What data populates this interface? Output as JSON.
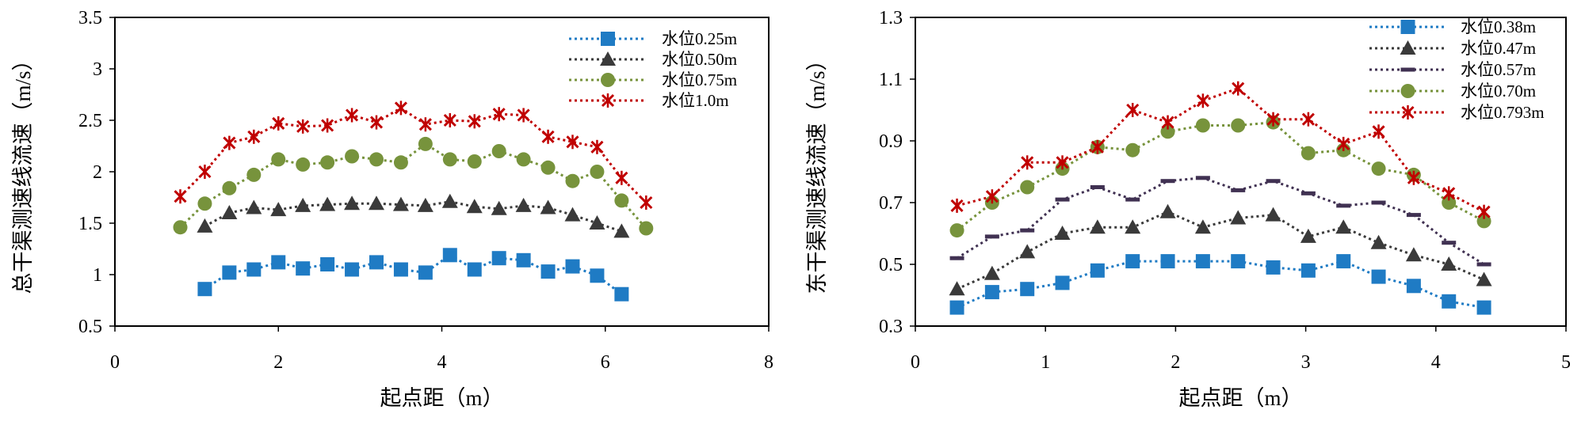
{
  "chart_data": [
    {
      "type": "line",
      "xlabel": "起点距（m）",
      "ylabel": "总干渠测速线流速（m/s）",
      "xlim": [
        0,
        8
      ],
      "ylim": [
        0.5,
        3.5
      ],
      "xticks": [
        0,
        2,
        4,
        6,
        8
      ],
      "yticks": [
        0.5,
        1,
        1.5,
        2,
        2.5,
        3,
        3.5
      ],
      "xtick_labels": [
        "0",
        "2",
        "4",
        "6",
        "8"
      ],
      "ytick_labels": [
        "0.5",
        "1",
        "1.5",
        "2",
        "2.5",
        "3",
        "3.5"
      ],
      "grid": false,
      "legend_position": "top-right",
      "series": [
        {
          "name": "水位0.25m",
          "marker": "square",
          "color": "#1f7bc4",
          "x": [
            1.1,
            1.4,
            1.7,
            2.0,
            2.3,
            2.6,
            2.9,
            3.2,
            3.5,
            3.8,
            4.1,
            4.4,
            4.7,
            5.0,
            5.3,
            5.6,
            5.9,
            6.2
          ],
          "y": [
            0.86,
            1.02,
            1.05,
            1.12,
            1.06,
            1.1,
            1.05,
            1.12,
            1.05,
            1.02,
            1.19,
            1.05,
            1.16,
            1.14,
            1.03,
            1.08,
            0.99,
            0.81
          ]
        },
        {
          "name": "水位0.50m",
          "marker": "triangle",
          "color": "#3a3a3a",
          "x": [
            1.1,
            1.4,
            1.7,
            2.0,
            2.3,
            2.6,
            2.9,
            3.2,
            3.5,
            3.8,
            4.1,
            4.4,
            4.7,
            5.0,
            5.3,
            5.6,
            5.9,
            6.2
          ],
          "y": [
            1.47,
            1.6,
            1.65,
            1.63,
            1.67,
            1.68,
            1.69,
            1.69,
            1.68,
            1.67,
            1.71,
            1.66,
            1.64,
            1.67,
            1.65,
            1.58,
            1.5,
            1.42
          ]
        },
        {
          "name": "水位0.75m",
          "marker": "circle",
          "color": "#77933c",
          "x": [
            0.8,
            1.1,
            1.4,
            1.7,
            2.0,
            2.3,
            2.6,
            2.9,
            3.2,
            3.5,
            3.8,
            4.1,
            4.4,
            4.7,
            5.0,
            5.3,
            5.6,
            5.9,
            6.2,
            6.5
          ],
          "y": [
            1.46,
            1.69,
            1.84,
            1.97,
            2.12,
            2.07,
            2.09,
            2.15,
            2.12,
            2.09,
            2.27,
            2.12,
            2.1,
            2.2,
            2.12,
            2.04,
            1.91,
            2.0,
            1.72,
            1.45
          ]
        },
        {
          "name": "水位1.0m",
          "marker": "star",
          "color": "#c00000",
          "x": [
            0.8,
            1.1,
            1.4,
            1.7,
            2.0,
            2.3,
            2.6,
            2.9,
            3.2,
            3.5,
            3.8,
            4.1,
            4.4,
            4.7,
            5.0,
            5.3,
            5.6,
            5.9,
            6.2,
            6.5
          ],
          "y": [
            1.76,
            2.0,
            2.28,
            2.34,
            2.47,
            2.44,
            2.45,
            2.55,
            2.48,
            2.62,
            2.46,
            2.5,
            2.49,
            2.56,
            2.55,
            2.34,
            2.29,
            2.24,
            1.94,
            1.7
          ]
        }
      ]
    },
    {
      "type": "line",
      "xlabel": "起点距（m）",
      "ylabel": "东干渠测速线流速（m/s）",
      "xlim": [
        0,
        5
      ],
      "ylim": [
        0.3,
        1.3
      ],
      "xticks": [
        0,
        1,
        2,
        3,
        4,
        5
      ],
      "yticks": [
        0.3,
        0.5,
        0.7,
        0.9,
        1.1,
        1.3
      ],
      "xtick_labels": [
        "0",
        "1",
        "2",
        "3",
        "4",
        "5"
      ],
      "ytick_labels": [
        "0.3",
        "0.5",
        "0.7",
        "0.9",
        "1.1",
        "1.3"
      ],
      "grid": false,
      "legend_position": "top-right",
      "series": [
        {
          "name": "水位0.38m",
          "marker": "square",
          "color": "#1f7bc4",
          "x": [
            0.32,
            0.59,
            0.86,
            1.13,
            1.4,
            1.67,
            1.94,
            2.21,
            2.48,
            2.75,
            3.02,
            3.29,
            3.56,
            3.83,
            4.1,
            4.37
          ],
          "y": [
            0.36,
            0.41,
            0.42,
            0.44,
            0.48,
            0.51,
            0.51,
            0.51,
            0.51,
            0.49,
            0.48,
            0.51,
            0.46,
            0.43,
            0.38,
            0.36
          ]
        },
        {
          "name": "水位0.47m",
          "marker": "triangle",
          "color": "#3a3a3a",
          "x": [
            0.32,
            0.59,
            0.86,
            1.13,
            1.4,
            1.67,
            1.94,
            2.21,
            2.48,
            2.75,
            3.02,
            3.29,
            3.56,
            3.83,
            4.1,
            4.37
          ],
          "y": [
            0.42,
            0.47,
            0.54,
            0.6,
            0.62,
            0.62,
            0.67,
            0.62,
            0.65,
            0.66,
            0.59,
            0.62,
            0.57,
            0.53,
            0.5,
            0.45
          ]
        },
        {
          "name": "水位0.57m",
          "marker": "dash",
          "color": "#403152",
          "x": [
            0.32,
            0.59,
            0.86,
            1.13,
            1.4,
            1.67,
            1.94,
            2.21,
            2.48,
            2.75,
            3.02,
            3.29,
            3.56,
            3.83,
            4.1,
            4.37
          ],
          "y": [
            0.52,
            0.59,
            0.61,
            0.71,
            0.75,
            0.71,
            0.77,
            0.78,
            0.74,
            0.77,
            0.73,
            0.69,
            0.7,
            0.66,
            0.57,
            0.5
          ]
        },
        {
          "name": "水位0.70m",
          "marker": "circle",
          "color": "#77933c",
          "x": [
            0.32,
            0.59,
            0.86,
            1.13,
            1.4,
            1.67,
            1.94,
            2.21,
            2.48,
            2.75,
            3.02,
            3.29,
            3.56,
            3.83,
            4.1,
            4.37
          ],
          "y": [
            0.61,
            0.7,
            0.75,
            0.81,
            0.88,
            0.87,
            0.93,
            0.95,
            0.95,
            0.96,
            0.86,
            0.87,
            0.81,
            0.79,
            0.7,
            0.64
          ]
        },
        {
          "name": "水位0.793m",
          "marker": "star",
          "color": "#c00000",
          "x": [
            0.32,
            0.59,
            0.86,
            1.13,
            1.4,
            1.67,
            1.94,
            2.21,
            2.48,
            2.75,
            3.02,
            3.29,
            3.56,
            3.83,
            4.1,
            4.37
          ],
          "y": [
            0.69,
            0.72,
            0.83,
            0.83,
            0.88,
            1.0,
            0.96,
            1.03,
            1.07,
            0.97,
            0.97,
            0.89,
            0.93,
            0.78,
            0.73,
            0.67
          ]
        }
      ]
    }
  ]
}
